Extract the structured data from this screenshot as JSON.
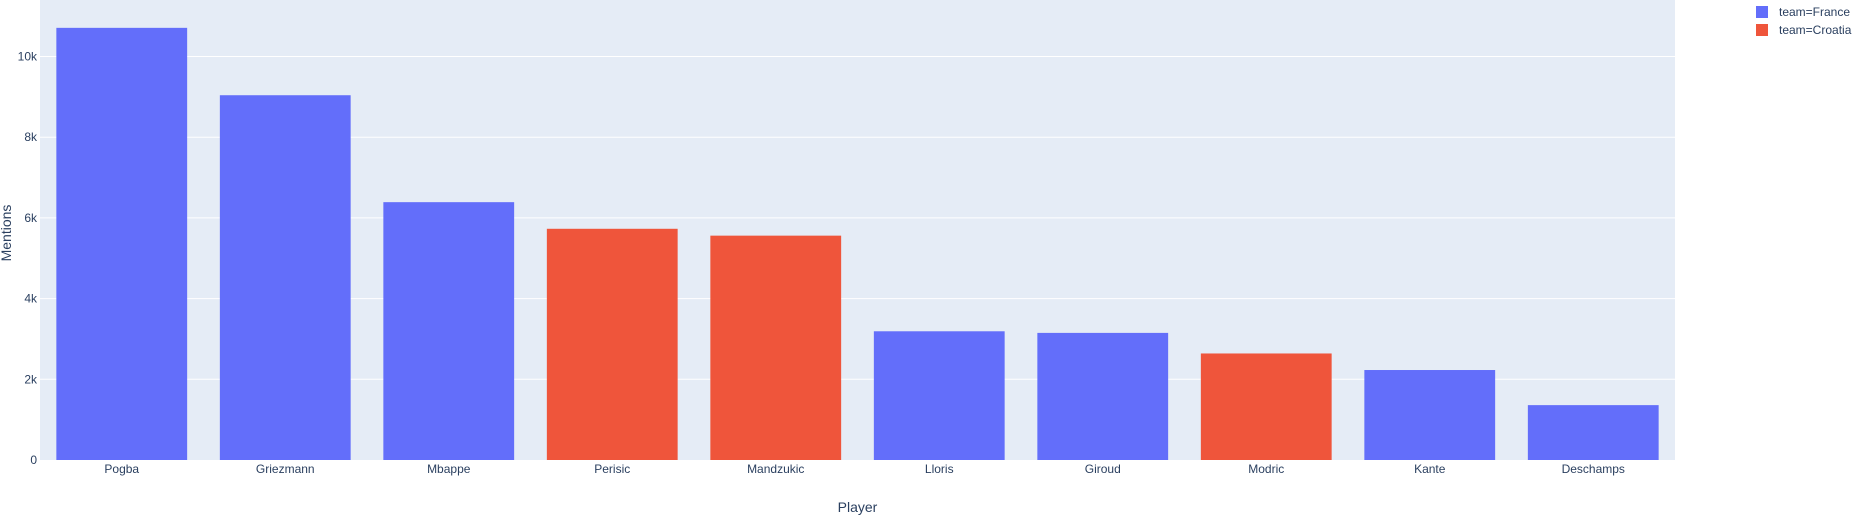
{
  "chart_data": {
    "type": "bar",
    "xlabel": "Player",
    "ylabel": "Mentions",
    "ylim": [
      0,
      11400
    ],
    "yticks": [
      0,
      2000,
      4000,
      6000,
      8000,
      10000
    ],
    "ytick_labels": [
      "0",
      "2k",
      "4k",
      "6k",
      "8k",
      "10k"
    ],
    "grid": true,
    "legend_position": "top-right",
    "categories": [
      "Pogba",
      "Griezmann",
      "Mbappe",
      "Perisic",
      "Mandzukic",
      "Lloris",
      "Giroud",
      "Modric",
      "Kante",
      "Deschamps"
    ],
    "series": [
      {
        "name": "team=France",
        "color": "#636efa",
        "values": [
          10710,
          9040,
          6390,
          null,
          null,
          3190,
          3150,
          null,
          2230,
          1360
        ]
      },
      {
        "name": "team=Croatia",
        "color": "#ef553b",
        "values": [
          null,
          null,
          null,
          5730,
          5560,
          null,
          null,
          2640,
          null,
          null
        ]
      }
    ]
  }
}
